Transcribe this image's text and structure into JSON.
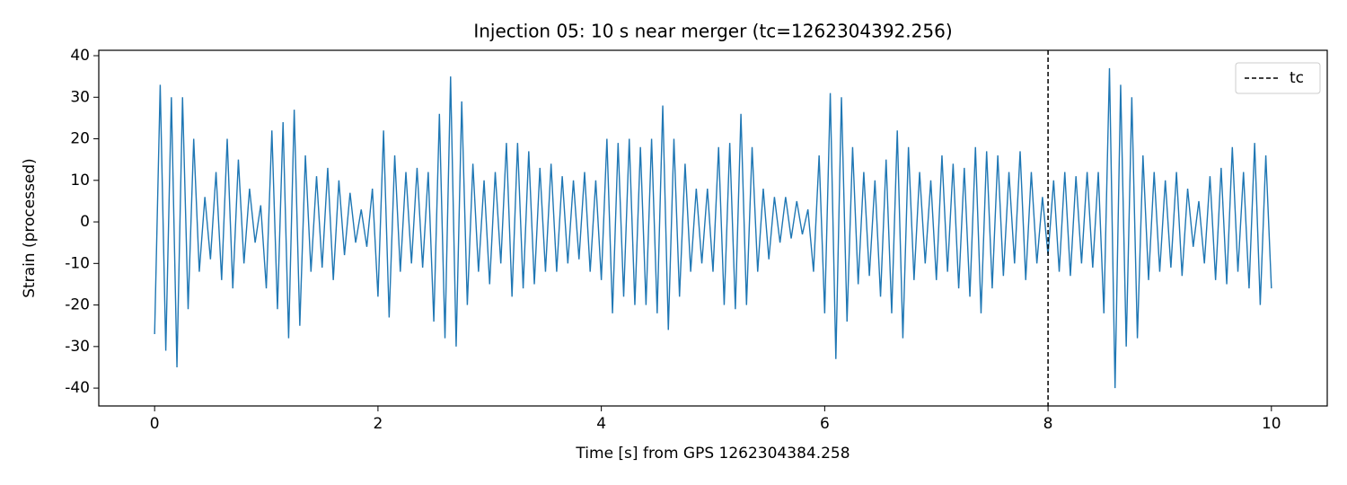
{
  "chart_data": {
    "type": "line",
    "title": "Injection 05: 10 s near merger (tc=1262304392.256)",
    "xlabel": "Time [s] from GPS 1262304384.258",
    "ylabel": "Strain (processed)",
    "xlim": [
      -0.5,
      10.5
    ],
    "ylim": [
      -44.3,
      41.3
    ],
    "xticks": [
      0,
      2,
      4,
      6,
      8,
      10
    ],
    "yticks": [
      -40,
      -30,
      -20,
      -10,
      0,
      10,
      20,
      30,
      40
    ],
    "legend": "upper right",
    "vline": {
      "x": 8,
      "name": "tc",
      "color": "#000000"
    },
    "x": [
      0,
      0.05,
      0.1,
      0.15,
      0.2,
      0.25,
      0.3,
      0.35,
      0.4,
      0.45,
      0.5,
      0.55,
      0.6,
      0.65,
      0.7,
      0.75,
      0.8,
      0.85,
      0.9,
      0.95,
      1,
      1.05,
      1.1,
      1.15,
      1.2,
      1.25,
      1.3,
      1.35,
      1.4,
      1.45,
      1.5,
      1.55,
      1.6,
      1.65,
      1.7,
      1.75,
      1.8,
      1.85,
      1.9,
      1.95,
      2,
      2.05,
      2.1,
      2.15,
      2.2,
      2.25,
      2.3,
      2.35,
      2.4,
      2.45,
      2.5,
      2.55,
      2.6,
      2.65,
      2.7,
      2.75,
      2.8,
      2.85,
      2.9,
      2.95,
      3,
      3.05,
      3.1,
      3.15,
      3.2,
      3.25,
      3.3,
      3.35,
      3.4,
      3.45,
      3.5,
      3.55,
      3.6,
      3.65,
      3.7,
      3.75,
      3.8,
      3.85,
      3.9,
      3.95,
      4,
      4.05,
      4.1,
      4.15,
      4.2,
      4.25,
      4.3,
      4.35,
      4.4,
      4.45,
      4.5,
      4.55,
      4.6,
      4.65,
      4.7,
      4.75,
      4.8,
      4.85,
      4.9,
      4.95,
      5,
      5.05,
      5.1,
      5.15,
      5.2,
      5.25,
      5.3,
      5.35,
      5.4,
      5.45,
      5.5,
      5.55,
      5.6,
      5.65,
      5.7,
      5.75,
      5.8,
      5.85,
      5.9,
      5.95,
      6,
      6.05,
      6.1,
      6.15,
      6.2,
      6.25,
      6.3,
      6.35,
      6.4,
      6.45,
      6.5,
      6.55,
      6.6,
      6.65,
      6.7,
      6.75,
      6.8,
      6.85,
      6.9,
      6.95,
      7,
      7.05,
      7.1,
      7.15,
      7.2,
      7.25,
      7.3,
      7.35,
      7.4,
      7.45,
      7.5,
      7.55,
      7.6,
      7.65,
      7.7,
      7.75,
      7.8,
      7.85,
      7.9,
      7.95,
      8,
      8.05,
      8.1,
      8.15,
      8.2,
      8.25,
      8.3,
      8.35,
      8.4,
      8.45,
      8.5,
      8.55,
      8.6,
      8.65,
      8.7,
      8.75,
      8.8,
      8.85,
      8.9,
      8.95,
      9,
      9.05,
      9.1,
      9.15,
      9.2,
      9.25,
      9.3,
      9.35,
      9.4,
      9.45,
      9.5,
      9.55,
      9.6,
      9.65,
      9.7,
      9.75,
      9.8,
      9.85,
      9.9,
      9.95,
      10
    ],
    "series": [
      {
        "color": "#1f77b4",
        "values": [
          -27,
          33,
          -31,
          30,
          -35,
          30,
          -21,
          20,
          -12,
          6,
          -9,
          12,
          -14,
          20,
          -16,
          15,
          -10,
          8,
          -5,
          4,
          -16,
          22,
          -21,
          24,
          -28,
          27,
          -25,
          16,
          -12,
          11,
          -11,
          13,
          -14,
          10,
          -8,
          7,
          -5,
          3,
          -6,
          8,
          -18,
          22,
          -23,
          16,
          -12,
          12,
          -10,
          13,
          -11,
          12,
          -24,
          26,
          -28,
          35,
          -30,
          29,
          -20,
          14,
          -12,
          10,
          -15,
          12,
          -10,
          19,
          -18,
          19,
          -16,
          17,
          -15,
          13,
          -12,
          14,
          -12,
          11,
          -10,
          10,
          -9,
          12,
          -12,
          10,
          -14,
          20,
          -22,
          19,
          -18,
          20,
          -20,
          18,
          -20,
          20,
          -22,
          28,
          -26,
          20,
          -18,
          14,
          -12,
          8,
          -10,
          8,
          -12,
          18,
          -20,
          19,
          -21,
          26,
          -20,
          18,
          -12,
          8,
          -9,
          6,
          -5,
          6,
          -4,
          5,
          -3,
          3,
          -12,
          16,
          -22,
          31,
          -33,
          30,
          -24,
          18,
          -15,
          12,
          -13,
          10,
          -18,
          15,
          -22,
          22,
          -28,
          18,
          -14,
          12,
          -10,
          10,
          -14,
          16,
          -12,
          14,
          -16,
          13,
          -18,
          18,
          -22,
          17,
          -16,
          16,
          -13,
          12,
          -10,
          17,
          -14,
          12,
          -10,
          6,
          -8,
          10,
          -12,
          12,
          -13,
          11,
          -10,
          12,
          -11,
          12,
          -22,
          37,
          -40,
          33,
          -30,
          30,
          -28,
          16,
          -14,
          12,
          -12,
          10,
          -11,
          12,
          -13,
          8,
          -6,
          5,
          -10,
          11,
          -14,
          13,
          -15,
          18,
          -12,
          12,
          -16,
          19,
          -20,
          16,
          -16
        ]
      }
    ]
  }
}
